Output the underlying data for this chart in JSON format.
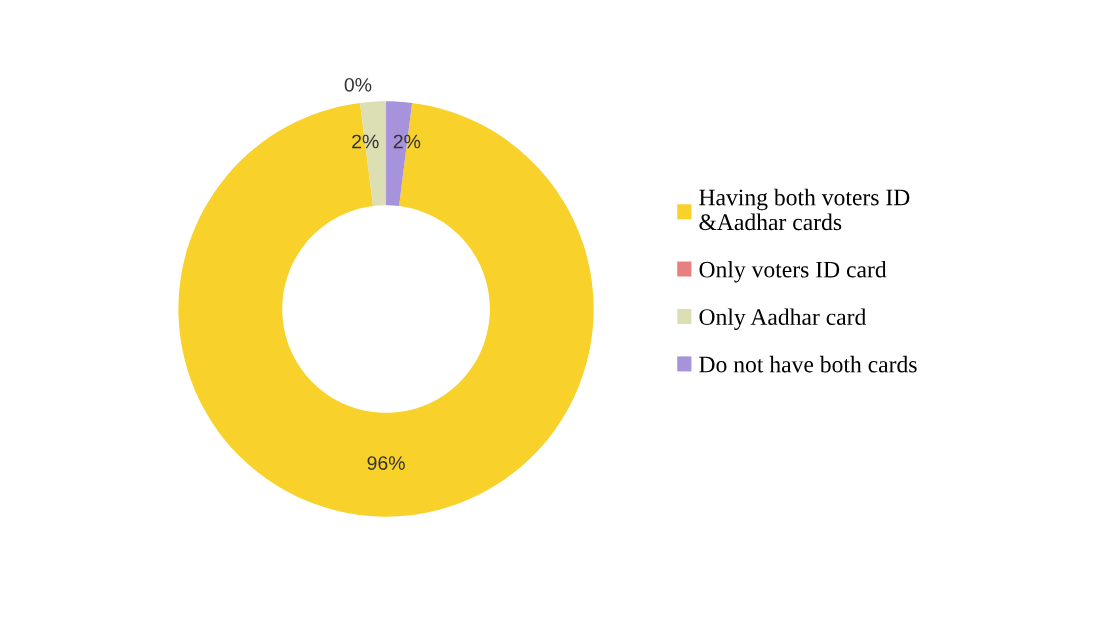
{
  "chart_data": {
    "type": "donut",
    "categories": [
      "Having both voters ID &Aadhar cards",
      "Only voters ID card",
      "Only Aadhar card",
      "Do not have both cards"
    ],
    "values": [
      96,
      0,
      2,
      2
    ],
    "colors": [
      "#f8d12a",
      "#e88080",
      "#dcdfb4",
      "#a793dc"
    ],
    "value_labels": [
      "96%",
      "0%",
      "2%",
      "2%"
    ],
    "legend": "right"
  }
}
